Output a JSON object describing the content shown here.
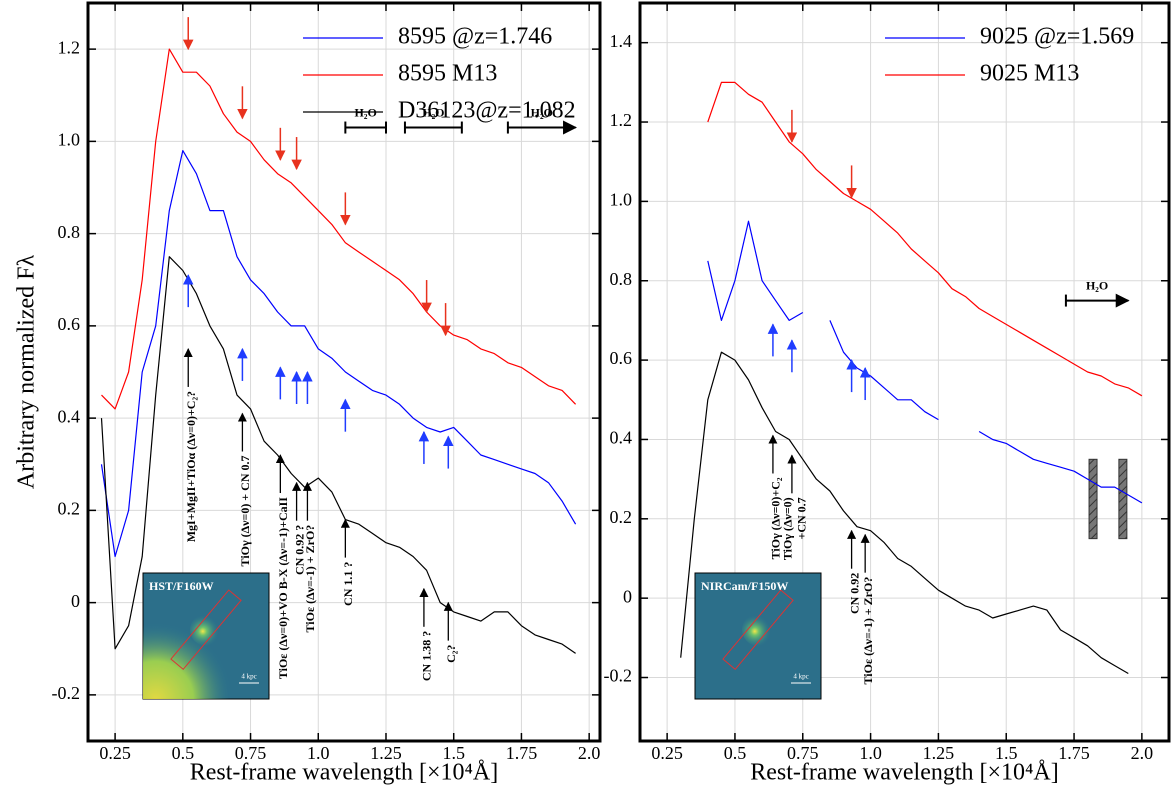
{
  "chart_data": [
    {
      "type": "line",
      "ylabel": "Arbitrary normalized Fλ",
      "xlabel": "Rest-frame wavelength [×10⁴Å]",
      "xlim": [
        0.15,
        2.04
      ],
      "ylim": [
        -0.3,
        1.3
      ],
      "xticks": [
        0.25,
        0.5,
        0.75,
        {
          "value": 1,
          "label": "1.0"
        },
        1.25,
        1.5,
        1.75,
        {
          "value": 2,
          "label": "2.0"
        }
      ],
      "yticks": [
        -0.2,
        0,
        0.2,
        0.4,
        0.6,
        0.8,
        {
          "value": 1,
          "label": "1.0"
        },
        1.2
      ],
      "grid": true,
      "legend": "upper right",
      "x": [
        0.2,
        0.25,
        0.3,
        0.35,
        0.4,
        0.45,
        0.5,
        0.55,
        0.6,
        0.65,
        0.7,
        0.75,
        0.8,
        0.85,
        0.9,
        0.95,
        1.0,
        1.05,
        1.1,
        1.15,
        1.2,
        1.25,
        1.3,
        1.35,
        1.4,
        1.45,
        1.5,
        1.55,
        1.6,
        1.65,
        1.7,
        1.75,
        1.8,
        1.85,
        1.9,
        1.95
      ],
      "series": [
        {
          "name": "8595 @z=1.746",
          "color": "#0000ff",
          "values": [
            0.3,
            0.1,
            0.2,
            0.5,
            0.6,
            0.85,
            0.98,
            0.93,
            0.85,
            0.85,
            0.75,
            0.7,
            0.67,
            0.63,
            0.6,
            0.6,
            0.55,
            0.53,
            0.5,
            0.48,
            0.46,
            0.45,
            0.43,
            0.4,
            0.38,
            0.37,
            0.38,
            0.35,
            0.32,
            0.31,
            0.3,
            0.29,
            0.28,
            0.26,
            0.22,
            0.17
          ]
        },
        {
          "name": "8595 M13",
          "color": "#ff0000",
          "values": [
            0.45,
            0.42,
            0.5,
            0.7,
            1.0,
            1.2,
            1.15,
            1.15,
            1.12,
            1.06,
            1.02,
            1.0,
            0.96,
            0.93,
            0.91,
            0.88,
            0.85,
            0.82,
            0.78,
            0.76,
            0.74,
            0.72,
            0.7,
            0.67,
            0.63,
            0.6,
            0.58,
            0.57,
            0.55,
            0.54,
            0.52,
            0.51,
            0.49,
            0.47,
            0.46,
            0.43
          ]
        },
        {
          "name": "D36123@z=1.082",
          "color": "#000000",
          "values": [
            0.4,
            -0.1,
            -0.05,
            0.1,
            0.45,
            0.75,
            0.72,
            0.67,
            0.6,
            0.55,
            0.45,
            0.42,
            0.35,
            0.32,
            0.28,
            0.25,
            0.27,
            0.24,
            0.18,
            0.17,
            0.15,
            0.13,
            0.12,
            0.1,
            0.07,
            0.0,
            -0.02,
            -0.03,
            -0.04,
            -0.02,
            -0.02,
            -0.05,
            -0.07,
            -0.08,
            -0.09,
            -0.11
          ]
        }
      ],
      "annotations": [
        {
          "text": "MgI+MgII+TiOα (Δν=0)+C₂?",
          "x": 0.52,
          "y": 0.55
        },
        {
          "text": "TiOγ (Δν=0) + CN 0.7",
          "x": 0.72,
          "y": 0.41
        },
        {
          "text": "TiOε (Δν=0)+VO B-X (Δν=-1)+CaII",
          "x": 0.86,
          "y": 0.32
        },
        {
          "text": "CN 0.92 ?",
          "x": 0.92,
          "y": 0.26
        },
        {
          "text": "TiOε (Δν=-1) + ZrO?",
          "x": 0.96,
          "y": 0.26
        },
        {
          "text": "CN 1.1 ?",
          "x": 1.1,
          "y": 0.18
        },
        {
          "text": "CN 1.38 ?",
          "x": 1.39,
          "y": 0.03
        },
        {
          "text": "C₂?",
          "x": 1.48,
          "y": 0.0
        }
      ],
      "arrows": [
        {
          "x": 0.52,
          "y": 1.2,
          "color": "#e8321e",
          "direction": "down"
        },
        {
          "x": 0.72,
          "y": 1.05,
          "color": "#e8321e",
          "direction": "down"
        },
        {
          "x": 0.86,
          "y": 0.96,
          "color": "#e8321e",
          "direction": "down"
        },
        {
          "x": 0.92,
          "y": 0.94,
          "color": "#e8321e",
          "direction": "down"
        },
        {
          "x": 1.1,
          "y": 0.82,
          "color": "#e8321e",
          "direction": "down"
        },
        {
          "x": 1.4,
          "y": 0.63,
          "color": "#e8321e",
          "direction": "down"
        },
        {
          "x": 1.47,
          "y": 0.58,
          "color": "#e8321e",
          "direction": "down"
        },
        {
          "x": 0.52,
          "y": 0.71,
          "color": "#1f3cff",
          "direction": "up"
        },
        {
          "x": 0.72,
          "y": 0.55,
          "color": "#1f3cff",
          "direction": "up"
        },
        {
          "x": 0.86,
          "y": 0.51,
          "color": "#1f3cff",
          "direction": "up"
        },
        {
          "x": 0.92,
          "y": 0.5,
          "color": "#1f3cff",
          "direction": "up"
        },
        {
          "x": 0.96,
          "y": 0.5,
          "color": "#1f3cff",
          "direction": "up"
        },
        {
          "x": 1.1,
          "y": 0.44,
          "color": "#1f3cff",
          "direction": "up"
        },
        {
          "x": 1.39,
          "y": 0.37,
          "color": "#1f3cff",
          "direction": "up"
        },
        {
          "x": 1.48,
          "y": 0.36,
          "color": "#1f3cff",
          "direction": "up"
        }
      ],
      "h2o": {
        "label": "H₂O",
        "y": 1.03,
        "ranges": [
          [
            1.1,
            1.25
          ],
          [
            1.32,
            1.53
          ],
          [
            1.7,
            1.95
          ]
        ]
      },
      "inset": {
        "label": "HST/F160W",
        "scale": "4 kpc"
      }
    },
    {
      "type": "line",
      "xlabel": "Rest-frame wavelength [×10⁴Å]",
      "xlim": [
        0.15,
        2.1
      ],
      "ylim": [
        -0.36,
        1.5
      ],
      "xticks": [
        0.25,
        0.5,
        0.75,
        {
          "value": 1,
          "label": "1.0"
        },
        1.25,
        1.5,
        1.75,
        {
          "value": 2,
          "label": "2.0"
        }
      ],
      "yticks": [
        -0.2,
        0,
        0.2,
        0.4,
        0.6,
        0.8,
        {
          "value": 1,
          "label": "1.0"
        },
        1.2,
        1.4
      ],
      "grid": true,
      "legend": "upper right",
      "x": [
        0.3,
        0.35,
        0.4,
        0.45,
        0.5,
        0.55,
        0.6,
        0.65,
        0.7,
        0.75,
        0.8,
        0.85,
        0.9,
        0.95,
        1.0,
        1.05,
        1.1,
        1.15,
        1.2,
        1.25,
        1.3,
        1.35,
        1.4,
        1.45,
        1.5,
        1.55,
        1.6,
        1.65,
        1.7,
        1.75,
        1.8,
        1.85,
        1.9,
        1.95,
        2.0
      ],
      "series": [
        {
          "name": "9025 @z=1.569",
          "color": "#0000ff",
          "values": [
            null,
            null,
            0.85,
            0.7,
            0.8,
            0.95,
            0.8,
            0.75,
            0.7,
            0.72,
            null,
            0.7,
            0.62,
            0.58,
            0.56,
            0.53,
            0.5,
            0.5,
            0.47,
            0.45,
            null,
            null,
            0.42,
            0.4,
            0.39,
            0.37,
            0.35,
            0.34,
            0.33,
            0.32,
            0.3,
            0.28,
            0.28,
            0.26,
            0.24
          ]
        },
        {
          "name": "9025 M13",
          "color": "#ff0000",
          "values": [
            null,
            null,
            1.2,
            1.3,
            1.3,
            1.27,
            1.25,
            1.2,
            1.15,
            1.12,
            1.08,
            1.05,
            1.02,
            1.0,
            0.98,
            0.95,
            0.92,
            0.88,
            0.85,
            0.82,
            0.78,
            0.76,
            0.73,
            0.71,
            0.69,
            0.67,
            0.65,
            0.63,
            0.61,
            0.59,
            0.57,
            0.56,
            0.54,
            0.53,
            0.51
          ]
        },
        {
          "color": "#000000",
          "values": [
            -0.15,
            0.2,
            0.5,
            0.62,
            0.6,
            0.55,
            0.48,
            0.42,
            0.4,
            0.35,
            0.3,
            0.27,
            0.22,
            0.18,
            0.17,
            0.14,
            0.1,
            0.08,
            0.05,
            0.02,
            0.0,
            -0.02,
            -0.03,
            -0.05,
            -0.04,
            -0.03,
            -0.02,
            -0.03,
            -0.08,
            -0.1,
            -0.12,
            -0.15,
            -0.17,
            -0.19,
            null
          ]
        }
      ],
      "annotations": [
        {
          "text": "TiOγ (Δν=0)+C₂",
          "x": 0.64,
          "y": 0.41
        },
        {
          "text": [
            "TiOγ (Δν=0)",
            "+CN 0.7"
          ],
          "x": 0.71,
          "y": 0.36
        },
        {
          "text": "CN 0.92",
          "x": 0.93,
          "y": 0.17
        },
        {
          "text": "TiOε (Δν=-1) + ZrO?",
          "x": 0.98,
          "y": 0.16
        }
      ],
      "arrows": [
        {
          "x": 0.71,
          "y": 1.15,
          "color": "#e8321e",
          "direction": "down"
        },
        {
          "x": 0.93,
          "y": 1.01,
          "color": "#e8321e",
          "direction": "down"
        },
        {
          "x": 0.64,
          "y": 0.69,
          "color": "#1f3cff",
          "direction": "up"
        },
        {
          "x": 0.71,
          "y": 0.65,
          "color": "#1f3cff",
          "direction": "up"
        },
        {
          "x": 0.93,
          "y": 0.6,
          "color": "#1f3cff",
          "direction": "up"
        },
        {
          "x": 0.98,
          "y": 0.58,
          "color": "#1f3cff",
          "direction": "up"
        }
      ],
      "h2o": {
        "label": "H₂O",
        "y": 0.75,
        "ranges": [
          [
            1.72,
            1.95
          ]
        ]
      },
      "masked": {
        "x": [
          1.82,
          1.93
        ],
        "ylim": [
          0.15,
          0.35
        ]
      },
      "inset": {
        "label": "NIRCam/F150W",
        "scale": "4 kpc"
      }
    }
  ]
}
